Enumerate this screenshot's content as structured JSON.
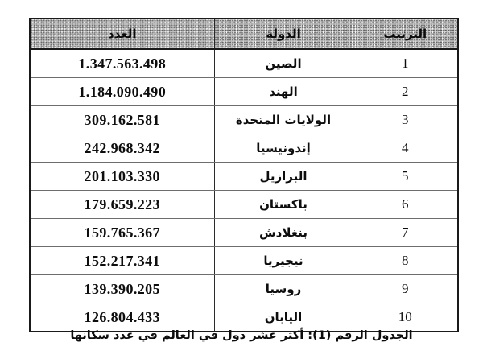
{
  "page": {
    "caption": "الجدول الرقم (1): أكثر عشر دول في العالم في عدد سكانها"
  },
  "table": {
    "headers": {
      "number": "العدد",
      "country": "الدولة",
      "rank": "الترتيب"
    },
    "rows": [
      {
        "rank": "1",
        "country": "الصين",
        "number": "1.347.563.498"
      },
      {
        "rank": "2",
        "country": "الهند",
        "number": "1.184.090.490"
      },
      {
        "rank": "3",
        "country": "الولايات المتحدة",
        "number": "309.162.581"
      },
      {
        "rank": "4",
        "country": "إندونيسيا",
        "number": "242.968.342"
      },
      {
        "rank": "5",
        "country": "البرازيل",
        "number": "201.103.330"
      },
      {
        "rank": "6",
        "country": "باكستان",
        "number": "179.659.223"
      },
      {
        "rank": "7",
        "country": "بنغلادش",
        "number": "159.765.367"
      },
      {
        "rank": "8",
        "country": "نيجيريا",
        "number": "152.217.341"
      },
      {
        "rank": "9",
        "country": "روسيا",
        "number": "139.390.205"
      },
      {
        "rank": "10",
        "country": "اليابان",
        "number": "126.804.433"
      }
    ]
  },
  "colors": {
    "header_bg": "#c3c3c3",
    "outer_border": "#1a1a1a",
    "row_line": "#6e6e6e",
    "text": "#0d0d0d",
    "page_bg": "#ffffff"
  }
}
